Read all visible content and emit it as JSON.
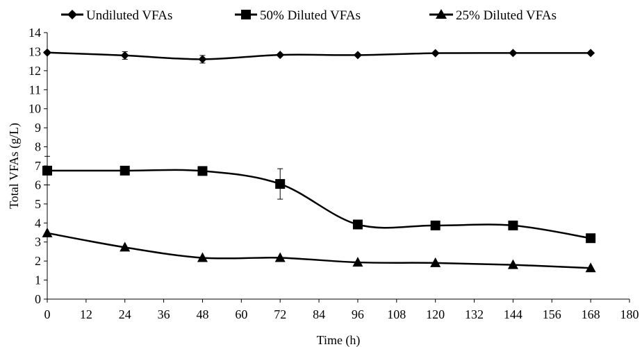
{
  "chart_data": {
    "type": "line",
    "xlabel": "Time (h)",
    "ylabel": "Total VFAs (g/L)",
    "xlim": [
      0,
      180
    ],
    "ylim": [
      0,
      14
    ],
    "x_ticks": [
      0,
      12,
      24,
      36,
      48,
      60,
      72,
      84,
      96,
      108,
      120,
      132,
      144,
      156,
      168,
      180
    ],
    "y_ticks": [
      0,
      1,
      2,
      3,
      4,
      5,
      6,
      7,
      8,
      9,
      10,
      11,
      12,
      13,
      14
    ],
    "grid": false,
    "legend_position": "top",
    "line_color": "#000000",
    "smoothed": true,
    "series": [
      {
        "name": "Undiluted VFAs",
        "marker": "diamond",
        "x": [
          0,
          24,
          48,
          72,
          96,
          120,
          144,
          168
        ],
        "y": [
          12.95,
          12.8,
          12.6,
          12.83,
          12.82,
          12.92,
          12.93,
          12.93
        ],
        "error": [
          0,
          0.2,
          0.2,
          0,
          0,
          0,
          0,
          0
        ]
      },
      {
        "name": "50% Diluted VFAs",
        "marker": "square",
        "x": [
          0,
          24,
          48,
          72,
          96,
          120,
          144,
          168
        ],
        "y": [
          6.75,
          6.75,
          6.73,
          6.05,
          3.92,
          3.87,
          3.87,
          3.2
        ],
        "error": [
          0.75,
          0,
          0,
          0.8,
          0,
          0,
          0,
          0
        ]
      },
      {
        "name": "25% Diluted VFAs",
        "marker": "triangle",
        "x": [
          0,
          24,
          48,
          72,
          96,
          120,
          144,
          168
        ],
        "y": [
          3.47,
          2.72,
          2.17,
          2.17,
          1.93,
          1.9,
          1.8,
          1.63
        ],
        "error": [
          0,
          0,
          0,
          0,
          0,
          0,
          0,
          0
        ]
      }
    ]
  }
}
